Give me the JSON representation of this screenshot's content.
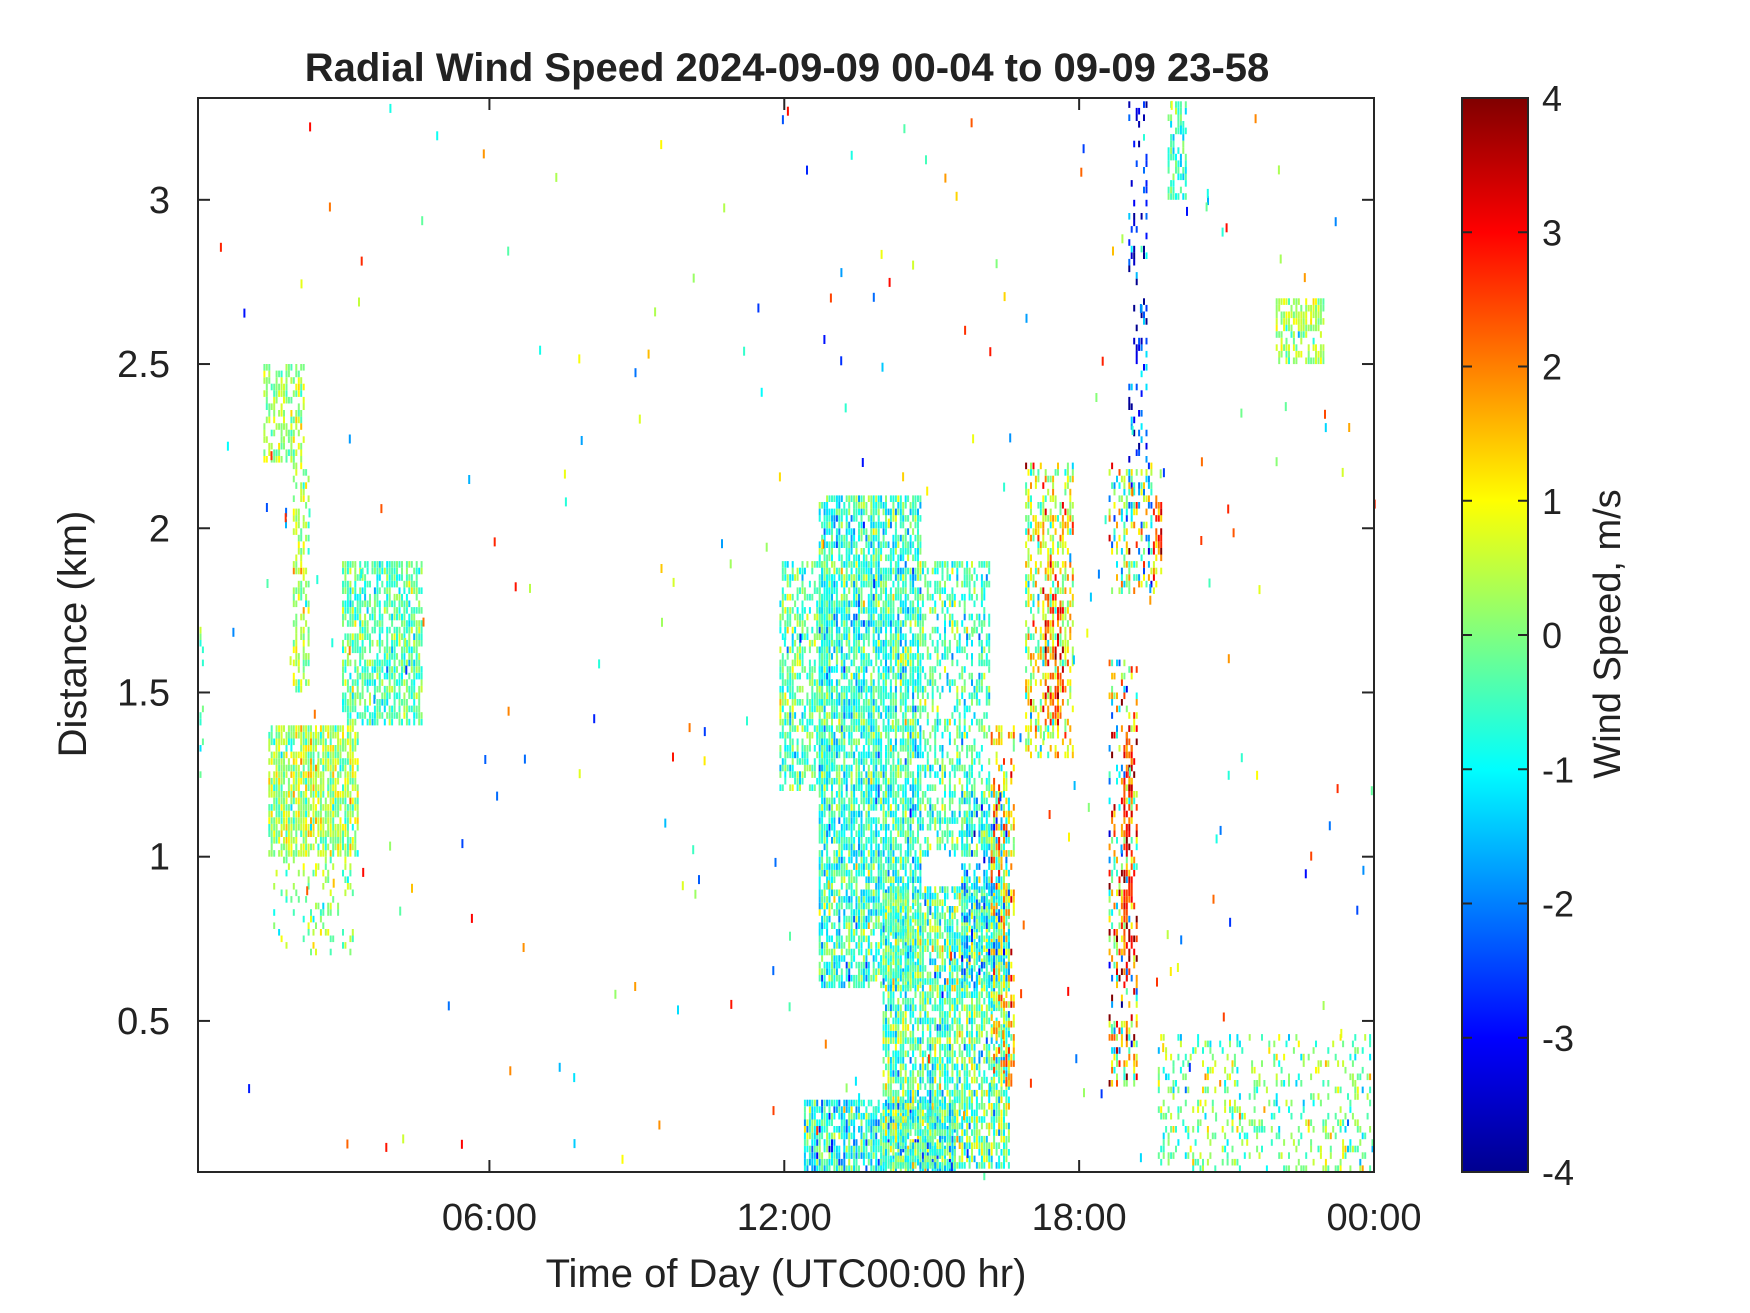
{
  "chart_data": {
    "type": "heatmap",
    "title": "Radial Wind Speed 2024-09-09 00-04 to 09-09 23-58",
    "xlabel": "Time of Day (UTC00:00 hr)",
    "ylabel": "Distance (km)",
    "xlim_hours": [
      0.07,
      24.0
    ],
    "ylim": [
      0.04,
      3.31
    ],
    "x_ticks": [
      {
        "value": 6,
        "label": "06:00"
      },
      {
        "value": 12,
        "label": "12:00"
      },
      {
        "value": 18,
        "label": "18:00"
      },
      {
        "value": 24,
        "label": "00:00"
      }
    ],
    "y_ticks": [
      {
        "value": 0.5,
        "label": "0.5"
      },
      {
        "value": 1,
        "label": "1"
      },
      {
        "value": 1.5,
        "label": "1.5"
      },
      {
        "value": 2,
        "label": "2"
      },
      {
        "value": 2.5,
        "label": "2.5"
      },
      {
        "value": 3,
        "label": "3"
      }
    ],
    "grid": false,
    "colorbar": {
      "label": "Wind Speed, m/s",
      "colormap": "jet",
      "range": [
        -4,
        4
      ],
      "ticks": [
        4,
        3,
        2,
        1,
        0,
        -1,
        -2,
        -3,
        -4
      ],
      "colors": [
        "#00008f",
        "#0000ff",
        "#00ffff",
        "#ffff00",
        "#ff0000",
        "#800000"
      ]
    },
    "regions": [
      {
        "t_start": 0.0,
        "t_end": 0.2,
        "d_low": 1.2,
        "d_high": 1.7,
        "speed_mean": -0.3,
        "speed_spread": 0.5,
        "density": 0.3
      },
      {
        "t_start": 1.4,
        "t_end": 2.2,
        "d_low": 2.2,
        "d_high": 2.5,
        "speed_mean": 0.2,
        "speed_spread": 0.5,
        "density": 0.6
      },
      {
        "t_start": 1.5,
        "t_end": 3.3,
        "d_low": 1.0,
        "d_high": 1.4,
        "speed_mean": 0.3,
        "speed_spread": 0.6,
        "density": 0.8
      },
      {
        "t_start": 3.0,
        "t_end": 4.6,
        "d_low": 1.4,
        "d_high": 1.9,
        "speed_mean": -0.3,
        "speed_spread": 0.5,
        "density": 0.7
      },
      {
        "t_start": 2.0,
        "t_end": 2.3,
        "d_low": 1.5,
        "d_high": 2.2,
        "speed_mean": 0.2,
        "speed_spread": 0.5,
        "density": 0.5
      },
      {
        "t_start": 1.6,
        "t_end": 3.2,
        "d_low": 0.7,
        "d_high": 1.0,
        "speed_mean": 0.1,
        "speed_spread": 0.5,
        "density": 0.2
      },
      {
        "t_start": 11.9,
        "t_end": 13.0,
        "d_low": 1.2,
        "d_high": 1.9,
        "speed_mean": -0.3,
        "speed_spread": 0.6,
        "density": 0.6
      },
      {
        "t_start": 12.7,
        "t_end": 14.8,
        "d_low": 0.6,
        "d_high": 2.1,
        "speed_mean": -0.6,
        "speed_spread": 0.7,
        "density": 0.75
      },
      {
        "t_start": 12.4,
        "t_end": 15.5,
        "d_low": 0.04,
        "d_high": 0.25,
        "speed_mean": -0.8,
        "speed_spread": 0.9,
        "density": 0.8
      },
      {
        "t_start": 14.0,
        "t_end": 16.6,
        "d_low": 0.05,
        "d_high": 0.9,
        "speed_mean": -0.3,
        "speed_spread": 0.8,
        "density": 0.75
      },
      {
        "t_start": 15.6,
        "t_end": 16.6,
        "d_low": 0.6,
        "d_high": 1.2,
        "speed_mean": -1.3,
        "speed_spread": 0.8,
        "density": 0.5
      },
      {
        "t_start": 14.8,
        "t_end": 16.2,
        "d_low": 1.0,
        "d_high": 1.9,
        "speed_mean": -0.5,
        "speed_spread": 0.6,
        "density": 0.45
      },
      {
        "t_start": 16.2,
        "t_end": 16.7,
        "d_low": 0.3,
        "d_high": 1.4,
        "speed_mean": 1.2,
        "speed_spread": 1.0,
        "density": 0.4
      },
      {
        "t_start": 16.9,
        "t_end": 17.9,
        "d_low": 1.3,
        "d_high": 2.2,
        "speed_mean": 0.7,
        "speed_spread": 1.0,
        "density": 0.45
      },
      {
        "t_start": 17.3,
        "t_end": 17.7,
        "d_low": 1.4,
        "d_high": 1.8,
        "speed_mean": 2.6,
        "speed_spread": 0.8,
        "density": 0.5
      },
      {
        "t_start": 18.6,
        "t_end": 19.2,
        "d_low": 0.3,
        "d_high": 1.6,
        "speed_mean": 1.0,
        "speed_spread": 1.8,
        "density": 0.35
      },
      {
        "t_start": 18.9,
        "t_end": 19.1,
        "d_low": 0.6,
        "d_high": 1.4,
        "speed_mean": 2.8,
        "speed_spread": 0.8,
        "density": 0.5
      },
      {
        "t_start": 18.6,
        "t_end": 19.5,
        "d_low": 1.8,
        "d_high": 2.2,
        "speed_mean": 0.0,
        "speed_spread": 1.5,
        "density": 0.4
      },
      {
        "t_start": 19.5,
        "t_end": 19.7,
        "d_low": 1.8,
        "d_high": 2.1,
        "speed_mean": 2.4,
        "speed_spread": 0.8,
        "density": 0.5
      },
      {
        "t_start": 19.0,
        "t_end": 19.4,
        "d_low": 2.2,
        "d_high": 3.3,
        "speed_mean": -2.8,
        "speed_spread": 1.0,
        "density": 0.2
      },
      {
        "t_start": 19.8,
        "t_end": 20.2,
        "d_low": 3.0,
        "d_high": 3.3,
        "speed_mean": -0.5,
        "speed_spread": 0.5,
        "density": 0.6
      },
      {
        "t_start": 22.0,
        "t_end": 23.0,
        "d_low": 2.5,
        "d_high": 2.7,
        "speed_mean": 0.3,
        "speed_spread": 0.5,
        "density": 0.6
      },
      {
        "t_start": 19.6,
        "t_end": 24.0,
        "d_low": 0.04,
        "d_high": 0.45,
        "speed_mean": 0.0,
        "speed_spread": 0.7,
        "density": 0.22
      }
    ]
  }
}
